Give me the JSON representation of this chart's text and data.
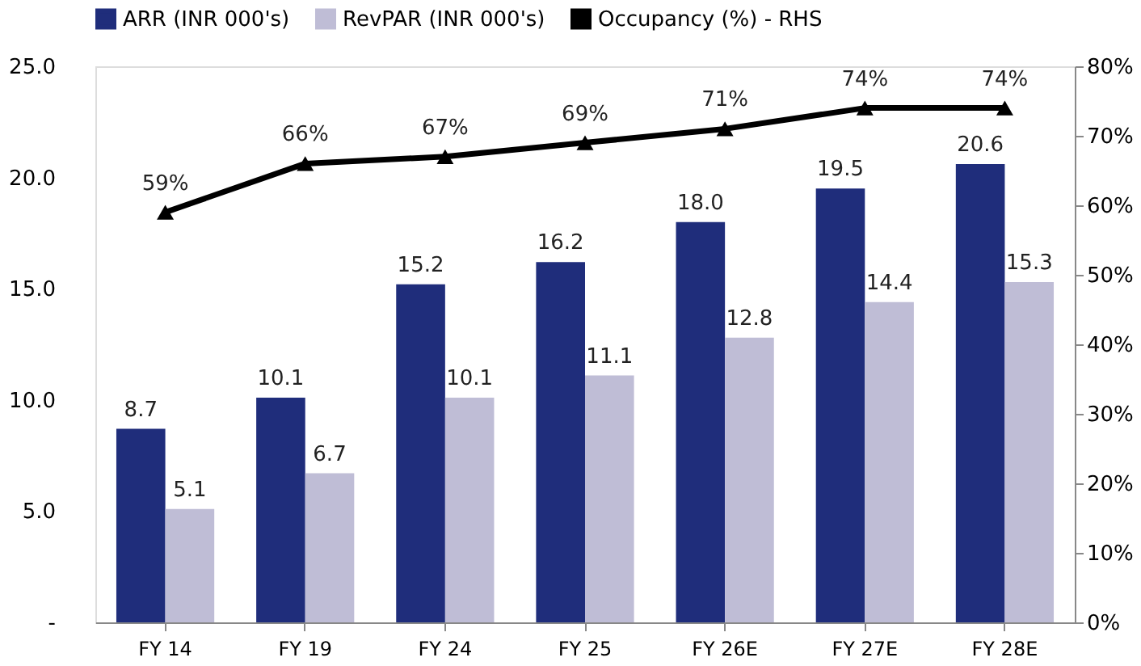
{
  "chart_data": {
    "type": "bar",
    "categories": [
      "FY 14",
      "FY 19",
      "FY 24",
      "FY 25",
      "FY 26E",
      "FY 27E",
      "FY 28E"
    ],
    "series": [
      {
        "name": "ARR (INR 000's)",
        "color": "#1f2d7b",
        "values": [
          8.7,
          10.1,
          15.2,
          16.2,
          18.0,
          19.5,
          20.6
        ],
        "value_labels": [
          "8.7",
          "10.1",
          "15.2",
          "16.2",
          "18.0",
          "19.5",
          "20.6"
        ]
      },
      {
        "name": "RevPAR (INR 000's)",
        "color": "#bfbdd6",
        "values": [
          5.1,
          6.7,
          10.1,
          11.1,
          12.8,
          14.4,
          15.3
        ],
        "value_labels": [
          "5.1",
          "6.7",
          "10.1",
          "11.1",
          "12.8",
          "14.4",
          "15.3"
        ]
      },
      {
        "name": "Occupancy (%) - RHS",
        "type": "line",
        "axis": "y2",
        "color": "#000000",
        "marker": "triangle",
        "values": [
          59,
          66,
          67,
          69,
          71,
          74,
          74
        ],
        "value_labels": [
          "59%",
          "66%",
          "67%",
          "69%",
          "71%",
          "74%",
          "74%"
        ]
      }
    ],
    "ylim": [
      0,
      25
    ],
    "yticks": [
      {
        "value": 0,
        "label": "-"
      },
      {
        "value": 5,
        "label": "5.0"
      },
      {
        "value": 10,
        "label": "10.0"
      },
      {
        "value": 15,
        "label": "15.0"
      },
      {
        "value": 20,
        "label": "20.0"
      },
      {
        "value": 25,
        "label": "25.0"
      }
    ],
    "y2lim": [
      0,
      80
    ],
    "y2ticks": [
      {
        "value": 0,
        "label": "0%"
      },
      {
        "value": 10,
        "label": "10%"
      },
      {
        "value": 20,
        "label": "20%"
      },
      {
        "value": 30,
        "label": "30%"
      },
      {
        "value": 40,
        "label": "40%"
      },
      {
        "value": 50,
        "label": "50%"
      },
      {
        "value": 60,
        "label": "60%"
      },
      {
        "value": 70,
        "label": "70%"
      },
      {
        "value": 80,
        "label": "80%"
      }
    ],
    "legend": "top",
    "grid": false
  }
}
